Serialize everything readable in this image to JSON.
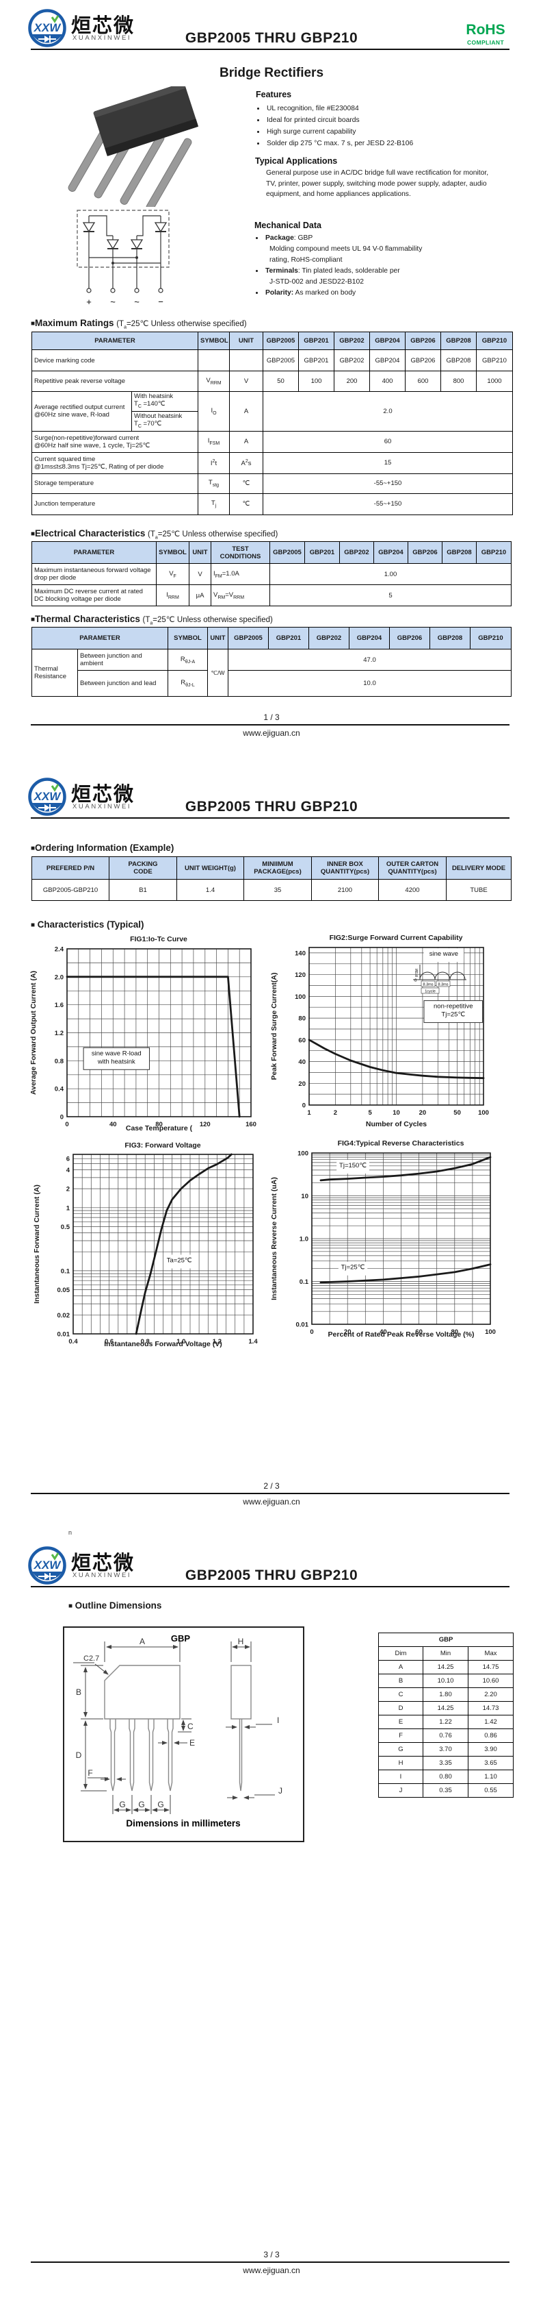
{
  "ui": {
    "square": "■",
    "bullet": "•"
  },
  "brand": {
    "logo_mono": "XXW",
    "logo_zh": "烜芯微",
    "logo_en": "XUANXINWEI",
    "rohs": "RoHS",
    "rohs_sub": "COMPLIANT"
  },
  "doc": {
    "title": "GBP2005 THRU GBP210",
    "product": "Bridge Rectifiers",
    "site": "www.ejiguan.cn",
    "pages": [
      "1 / 3",
      "2 / 3",
      "3 / 3"
    ],
    "stray": "n"
  },
  "features": {
    "heading": "Features",
    "items": [
      "UL recognition, file #E230084",
      "Ideal for printed circuit boards",
      "High surge current capability",
      "Solder dip 275 °C max. 7 s, per JESD 22-B106"
    ]
  },
  "applications": {
    "heading": "Typical Applications",
    "text": "General purpose use in AC/DC bridge full wave rectification for monitor, TV, printer, power supply, switching mode power supply, adapter, audio equipment, and home appliances applications."
  },
  "mechanical": {
    "heading": "Mechanical Data",
    "items": [
      {
        "b": "Package",
        "t": ": GBP"
      },
      {
        "b": "",
        "t": "Molding compound meets UL 94 V-0 flammability"
      },
      {
        "b": "",
        "t": "rating, RoHS-compliant"
      },
      {
        "b": "Terminals",
        "t": ": Tin plated leads, solderable per"
      },
      {
        "b": "",
        "t": "J-STD-002 and JESD22-B102"
      },
      {
        "b": "Polarity:",
        "t": " As marked on body"
      }
    ]
  },
  "schematic": {
    "terminals": [
      "+",
      "~",
      "~",
      "−"
    ]
  },
  "models": [
    "GBP2005",
    "GBP201",
    "GBP202",
    "GBP204",
    "GBP206",
    "GBP208",
    "GBP210"
  ],
  "max_ratings": {
    "heading": "Maximum Ratings",
    "cond_pre": "(T",
    "cond_sub": "a",
    "cond_post": "=25℃ Unless otherwise specified)",
    "col_param": "PARAMETER",
    "col_symbol": "SYMBOL",
    "col_unit": "UNIT",
    "marking": {
      "param": "Device marking code",
      "values": [
        "GBP2005",
        "GBP201",
        "GBP202",
        "GBP204",
        "GBP206",
        "GBP208",
        "GBP210"
      ]
    },
    "vrrm": {
      "param": "Repetitive peak reverse voltage",
      "sym": {
        "pre": "V",
        "sub": "RRM"
      },
      "unit": "V",
      "values": [
        "50",
        "100",
        "200",
        "400",
        "600",
        "800",
        "1000"
      ]
    },
    "io": {
      "param": "Average rectified output current @60Hz sine wave, R-load",
      "sub1_l1": "With heatsink",
      "sub1_l2": {
        "pre": "T",
        "sub": "C",
        "post": " =140℃"
      },
      "sub2_l1": "Without heatsink",
      "sub2_l2": {
        "pre": "T",
        "sub": "C",
        "post": " =70℃"
      },
      "sym": {
        "pre": "I",
        "sub": "O"
      },
      "unit": "A",
      "value": "2.0"
    },
    "ifsm": {
      "param_l1": "Surge(non-repetitive)forward current",
      "param_l2": "@60Hz half sine wave, 1 cycle, Tj=25℃",
      "sym": {
        "pre": "I",
        "sub": "FSM"
      },
      "unit": "A",
      "value": "60"
    },
    "i2t": {
      "param_l1": "Current squared time",
      "param_l2": "@1ms≤t≤8.3ms Tj=25℃, Rating of per diode",
      "sym": {
        "pre": "I",
        "sup": "2",
        "post": "t"
      },
      "unit": {
        "pre": "A",
        "sup": "2",
        "post": "s"
      },
      "value": "15"
    },
    "tstg": {
      "param": "Storage temperature",
      "sym": {
        "pre": "T",
        "sub": "stg"
      },
      "unit": "℃",
      "value": "-55~+150"
    },
    "tj": {
      "param": "Junction temperature",
      "sym": {
        "pre": "T",
        "sub": "j"
      },
      "unit": "℃",
      "value": "-55~+150"
    }
  },
  "electrical": {
    "heading": "Electrical Characteristics",
    "cond_pre": "(T",
    "cond_sub": "a",
    "cond_post": "=25℃ Unless otherwise specified)",
    "col_param": "PARAMETER",
    "col_symbol": "SYMBOL",
    "col_unit": "UNIT",
    "col_test": "TEST CONDITIONS",
    "vf": {
      "param": "Maximum instantaneous forward voltage drop per diode",
      "sym": {
        "pre": "V",
        "sub": "F"
      },
      "unit": "V",
      "test": {
        "pre": "I",
        "sub": "FM",
        "post": "=1.0A"
      },
      "value": "1.00"
    },
    "irrm": {
      "param": "Maximum DC reverse current at rated DC blocking voltage per diode",
      "sym": {
        "pre": "I",
        "sub": "RRM"
      },
      "unit": "μA",
      "test": {
        "pre": "V",
        "sub": "RM",
        "mid": "=V",
        "sub2": "RRM"
      },
      "value": "5"
    }
  },
  "thermal": {
    "heading": "Thermal Characteristics",
    "cond_pre": "(T",
    "cond_sub": "a",
    "cond_post": "=25℃ Unless otherwise specified)",
    "col_param": "PARAMETER",
    "col_symbol": "SYMBOL",
    "col_unit": "UNIT",
    "group": "Thermal Resistance",
    "unit": "℃/W",
    "ja": {
      "param": "Between junction and ambient",
      "sym": {
        "pre": "R",
        "sub": "θJ-A"
      },
      "value": "47.0"
    },
    "jl": {
      "param": "Between junction and lead",
      "sym": {
        "pre": "R",
        "sub": "θJ-L"
      },
      "value": "10.0"
    }
  },
  "ordering": {
    "heading": "Ordering Information (Example)",
    "headers": [
      {
        "l1": "PREFERED P/N",
        "l2": ""
      },
      {
        "l1": "PACKING",
        "l2": "CODE"
      },
      {
        "l1": "UNIT WEIGHT(g)",
        "l2": ""
      },
      {
        "l1": "MINIIMUM",
        "l2": "PACKAGE(pcs)"
      },
      {
        "l1": "INNER BOX",
        "l2": "QUANTITY(pcs)"
      },
      {
        "l1": "OUTER CARTON",
        "l2": "QUANTITY(pcs)"
      },
      {
        "l1": "DELIVERY MODE",
        "l2": ""
      }
    ],
    "row": [
      "GBP2005-GBP210",
      "B1",
      "1.4",
      "35",
      "2100",
      "4200",
      "TUBE"
    ]
  },
  "characteristics_heading": "Characteristics (Typical)",
  "chart_data": [
    {
      "id": "fig1",
      "type": "line",
      "title": "FIG1:Io-Tc Curve",
      "xlabel": "Case Temperature (",
      "ylabel": "Average Forward Output Current (A)",
      "xaxis": {
        "type": "linear",
        "min": 0,
        "max": 160,
        "grid": 10,
        "ticks": [
          [
            0,
            "0"
          ],
          [
            40,
            "40"
          ],
          [
            80,
            "80"
          ],
          [
            120,
            "120"
          ],
          [
            160,
            "160"
          ]
        ]
      },
      "yaxis": {
        "type": "linear",
        "min": 0,
        "max": 2.4,
        "grid": 0.2,
        "ticks": [
          [
            0,
            "0"
          ],
          [
            0.4,
            "0.4"
          ],
          [
            0.8,
            "0.8"
          ],
          [
            1.2,
            "1.2"
          ],
          [
            1.6,
            "1.6"
          ],
          [
            2.0,
            "2.0"
          ],
          [
            2.4,
            "2.4"
          ]
        ]
      },
      "series": [
        {
          "name": "Io",
          "points": [
            [
              0,
              2
            ],
            [
              140,
              2
            ],
            [
              150,
              0
            ]
          ]
        }
      ],
      "annotations": [
        {
          "x": 43,
          "y": 0.83,
          "lines": [
            "sine wave R-load",
            "with heatsink"
          ],
          "border": true,
          "mono": true
        }
      ]
    },
    {
      "id": "fig2",
      "type": "line",
      "title": "FIG2:Surge Forward Current Capability",
      "xlabel": "Number of Cycles",
      "ylabel": "Peak Forward Surge Current(A)",
      "xaxis": {
        "type": "log",
        "min": 1,
        "max": 100,
        "ticks": [
          [
            1,
            "1"
          ],
          [
            2,
            "2"
          ],
          [
            5,
            "5"
          ],
          [
            10,
            "10"
          ],
          [
            20,
            "20"
          ],
          [
            50,
            "50"
          ],
          [
            100,
            "100"
          ]
        ]
      },
      "yaxis": {
        "type": "linear",
        "min": 0,
        "max": 145,
        "grid": 10,
        "ticks": [
          [
            0,
            "0"
          ],
          [
            20,
            "20"
          ],
          [
            40,
            "40"
          ],
          [
            60,
            "60"
          ],
          [
            80,
            "80"
          ],
          [
            100,
            "100"
          ],
          [
            120,
            "120"
          ],
          [
            140,
            "140"
          ]
        ]
      },
      "series": [
        {
          "name": "IFSM",
          "points": [
            [
              1,
              60
            ],
            [
              1.5,
              52
            ],
            [
              2,
              47
            ],
            [
              3,
              41
            ],
            [
              5,
              35
            ],
            [
              7,
              32
            ],
            [
              10,
              29.5
            ],
            [
              15,
              28
            ],
            [
              20,
              27
            ],
            [
              30,
              26
            ],
            [
              50,
              25.3
            ],
            [
              70,
              25
            ],
            [
              100,
              24.8
            ]
          ]
        }
      ],
      "annotations": [
        {
          "x": 35,
          "y": 138,
          "lines": [
            "sine wave"
          ],
          "border": false,
          "mono": true
        },
        {
          "x": 45,
          "y": 86,
          "lines": [
            "non-repetitive",
            "Tj=25℃"
          ],
          "border": true,
          "mono": false
        }
      ],
      "inset": {
        "label": "IFSM",
        "t1": "8.3ms",
        "t2": "8.3ms",
        "t3": "1cycle",
        "zero": "0"
      }
    },
    {
      "id": "fig3",
      "type": "line",
      "title": "FIG3: Forward Voltage",
      "xlabel": "Instantaneous Forward Voltage (V)",
      "ylabel": "Instantaneous Forward Current (A)",
      "xaxis": {
        "type": "linear",
        "min": 0.4,
        "max": 1.4,
        "grid": 0.05,
        "ticks": [
          [
            0.4,
            "0.4"
          ],
          [
            0.6,
            "0.6"
          ],
          [
            0.8,
            "0.8"
          ],
          [
            1.0,
            "1.0"
          ],
          [
            1.2,
            "1.2"
          ],
          [
            1.4,
            "1.4"
          ]
        ]
      },
      "yaxis": {
        "type": "log",
        "min": 0.01,
        "max": 7,
        "ticks": [
          [
            6,
            "6"
          ],
          [
            4,
            "4"
          ],
          [
            2,
            "2"
          ],
          [
            1,
            "1"
          ],
          [
            0.5,
            "0.5"
          ],
          [
            0.1,
            "0.1"
          ],
          [
            0.05,
            "0.05"
          ],
          [
            0.02,
            "0.02"
          ],
          [
            0.01,
            "0.01"
          ]
        ]
      },
      "series": [
        {
          "name": "VF",
          "points": [
            [
              0.75,
              0.01
            ],
            [
              0.78,
              0.025
            ],
            [
              0.8,
              0.045
            ],
            [
              0.83,
              0.09
            ],
            [
              0.86,
              0.2
            ],
            [
              0.89,
              0.45
            ],
            [
              0.92,
              0.9
            ],
            [
              0.95,
              1.35
            ],
            [
              1.0,
              2.0
            ],
            [
              1.05,
              2.7
            ],
            [
              1.1,
              3.4
            ],
            [
              1.15,
              4.2
            ],
            [
              1.2,
              4.9
            ],
            [
              1.26,
              6.2
            ],
            [
              1.28,
              7.0
            ]
          ]
        }
      ],
      "annotations": [
        {
          "x": 0.99,
          "y": 0.14,
          "lines": [
            "Ta=25℃"
          ],
          "border": false,
          "mono": false
        }
      ]
    },
    {
      "id": "fig4",
      "type": "line",
      "title": "FIG4:Typical Reverse Characteristics",
      "xlabel": "Percent of Rated Peak Reverse Voltage  (%)",
      "ylabel": "Instantaneous Reverse Current (uA)",
      "xaxis": {
        "type": "linear",
        "min": 0,
        "max": 100,
        "grid": 10,
        "ticks": [
          [
            0,
            "0"
          ],
          [
            20,
            "20"
          ],
          [
            40,
            "40"
          ],
          [
            60,
            "60"
          ],
          [
            80,
            "80"
          ],
          [
            100,
            "100"
          ]
        ]
      },
      "yaxis": {
        "type": "log",
        "min": 0.01,
        "max": 100,
        "ticks": [
          [
            100,
            "100"
          ],
          [
            10,
            "10"
          ],
          [
            1,
            "1.0"
          ],
          [
            0.1,
            "0.1"
          ],
          [
            0.01,
            "0.01"
          ]
        ]
      },
      "series": [
        {
          "name": "Tj=150℃",
          "points": [
            [
              5,
              23
            ],
            [
              10,
              24
            ],
            [
              20,
              25
            ],
            [
              30,
              26.5
            ],
            [
              40,
              28
            ],
            [
              50,
              30
            ],
            [
              60,
              33
            ],
            [
              70,
              37
            ],
            [
              80,
              44
            ],
            [
              90,
              55
            ],
            [
              100,
              80
            ]
          ]
        },
        {
          "name": "Tj=25℃",
          "points": [
            [
              5,
              0.095
            ],
            [
              20,
              0.1
            ],
            [
              40,
              0.11
            ],
            [
              60,
              0.13
            ],
            [
              80,
              0.165
            ],
            [
              90,
              0.2
            ],
            [
              100,
              0.25
            ]
          ]
        }
      ],
      "annotations": [
        {
          "x": 23,
          "y": 48,
          "lines": [
            "Tj=150℃"
          ],
          "border": false,
          "mono": false
        },
        {
          "x": 23,
          "y": 0.2,
          "lines": [
            "Tj=25℃"
          ],
          "border": false,
          "mono": false
        }
      ]
    }
  ],
  "outline": {
    "heading": "Outline Dimensions",
    "pkg": "GBP",
    "caption": "Dimensions in millimeters",
    "labels": {
      "a": "A",
      "b": "B",
      "c": "C",
      "c27": "C2.7",
      "d": "D",
      "e": "E",
      "f": "F",
      "g": "G",
      "h": "H",
      "i": "I",
      "j": "J"
    },
    "table": {
      "title": "GBP",
      "cols": [
        "Dim",
        "Min",
        "Max"
      ],
      "rows": [
        [
          "A",
          "14.25",
          "14.75"
        ],
        [
          "B",
          "10.10",
          "10.60"
        ],
        [
          "C",
          "1.80",
          "2.20"
        ],
        [
          "D",
          "14.25",
          "14.73"
        ],
        [
          "E",
          "1.22",
          "1.42"
        ],
        [
          "F",
          "0.76",
          "0.86"
        ],
        [
          "G",
          "3.70",
          "3.90"
        ],
        [
          "H",
          "3.35",
          "3.65"
        ],
        [
          "I",
          "0.80",
          "1.10"
        ],
        [
          "J",
          "0.35",
          "0.55"
        ]
      ]
    }
  }
}
